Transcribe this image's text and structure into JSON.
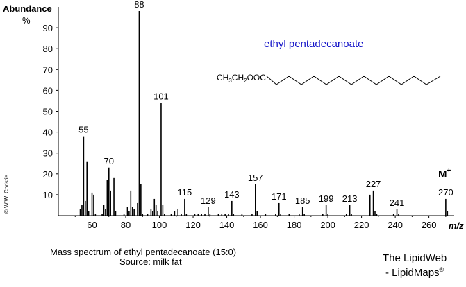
{
  "chart_data": {
    "type": "bar",
    "title": "",
    "ylabel": "Abundance",
    "ylabel_unit": "%",
    "xlabel": "m/z",
    "xlim": [
      40,
      275
    ],
    "ylim": [
      0,
      100
    ],
    "xticks": [
      60,
      80,
      100,
      120,
      140,
      160,
      180,
      200,
      220,
      240,
      260
    ],
    "yticks": [
      10,
      20,
      30,
      40,
      50,
      60,
      70,
      80,
      90
    ],
    "compound_name": "ethyl pentadecanoate",
    "formula_label": "CH3CH2OOC",
    "molecular_ion_label": "M",
    "molecular_ion_sup": "+",
    "peaks": [
      {
        "mz": 53,
        "intensity": 3
      },
      {
        "mz": 54,
        "intensity": 5
      },
      {
        "mz": 55,
        "intensity": 38,
        "label": "55"
      },
      {
        "mz": 56,
        "intensity": 7
      },
      {
        "mz": 57,
        "intensity": 26
      },
      {
        "mz": 58,
        "intensity": 2
      },
      {
        "mz": 60,
        "intensity": 11
      },
      {
        "mz": 61,
        "intensity": 10
      },
      {
        "mz": 62,
        "intensity": 1
      },
      {
        "mz": 66,
        "intensity": 1
      },
      {
        "mz": 67,
        "intensity": 5
      },
      {
        "mz": 68,
        "intensity": 3
      },
      {
        "mz": 69,
        "intensity": 17
      },
      {
        "mz": 70,
        "intensity": 23,
        "label": "70"
      },
      {
        "mz": 71,
        "intensity": 12
      },
      {
        "mz": 73,
        "intensity": 18
      },
      {
        "mz": 74,
        "intensity": 2
      },
      {
        "mz": 79,
        "intensity": 1
      },
      {
        "mz": 81,
        "intensity": 4
      },
      {
        "mz": 82,
        "intensity": 2
      },
      {
        "mz": 83,
        "intensity": 12
      },
      {
        "mz": 84,
        "intensity": 4
      },
      {
        "mz": 85,
        "intensity": 3
      },
      {
        "mz": 87,
        "intensity": 6
      },
      {
        "mz": 88,
        "intensity": 98,
        "label": "88"
      },
      {
        "mz": 89,
        "intensity": 15
      },
      {
        "mz": 90,
        "intensity": 1
      },
      {
        "mz": 93,
        "intensity": 1
      },
      {
        "mz": 95,
        "intensity": 3
      },
      {
        "mz": 96,
        "intensity": 2
      },
      {
        "mz": 97,
        "intensity": 8
      },
      {
        "mz": 98,
        "intensity": 5
      },
      {
        "mz": 99,
        "intensity": 2
      },
      {
        "mz": 101,
        "intensity": 54,
        "label": "101"
      },
      {
        "mz": 102,
        "intensity": 5
      },
      {
        "mz": 103,
        "intensity": 1
      },
      {
        "mz": 107,
        "intensity": 1
      },
      {
        "mz": 109,
        "intensity": 2
      },
      {
        "mz": 111,
        "intensity": 3
      },
      {
        "mz": 113,
        "intensity": 1
      },
      {
        "mz": 115,
        "intensity": 8,
        "label": "115"
      },
      {
        "mz": 116,
        "intensity": 1
      },
      {
        "mz": 121,
        "intensity": 1
      },
      {
        "mz": 123,
        "intensity": 1
      },
      {
        "mz": 125,
        "intensity": 1
      },
      {
        "mz": 127,
        "intensity": 1
      },
      {
        "mz": 129,
        "intensity": 4,
        "label": "129"
      },
      {
        "mz": 130,
        "intensity": 1
      },
      {
        "mz": 135,
        "intensity": 1
      },
      {
        "mz": 137,
        "intensity": 1
      },
      {
        "mz": 139,
        "intensity": 1
      },
      {
        "mz": 141,
        "intensity": 1
      },
      {
        "mz": 143,
        "intensity": 7,
        "label": "143"
      },
      {
        "mz": 144,
        "intensity": 1
      },
      {
        "mz": 149,
        "intensity": 1
      },
      {
        "mz": 155,
        "intensity": 1
      },
      {
        "mz": 157,
        "intensity": 15,
        "label": "157"
      },
      {
        "mz": 158,
        "intensity": 2
      },
      {
        "mz": 163,
        "intensity": 1
      },
      {
        "mz": 169,
        "intensity": 1
      },
      {
        "mz": 171,
        "intensity": 6,
        "label": "171"
      },
      {
        "mz": 172,
        "intensity": 1
      },
      {
        "mz": 177,
        "intensity": 1
      },
      {
        "mz": 183,
        "intensity": 1
      },
      {
        "mz": 185,
        "intensity": 4,
        "label": "185"
      },
      {
        "mz": 186,
        "intensity": 1
      },
      {
        "mz": 197,
        "intensity": 1
      },
      {
        "mz": 199,
        "intensity": 5,
        "label": "199"
      },
      {
        "mz": 200,
        "intensity": 1
      },
      {
        "mz": 211,
        "intensity": 1
      },
      {
        "mz": 213,
        "intensity": 5,
        "label": "213"
      },
      {
        "mz": 214,
        "intensity": 1
      },
      {
        "mz": 225,
        "intensity": 10
      },
      {
        "mz": 227,
        "intensity": 12,
        "label": "227"
      },
      {
        "mz": 228,
        "intensity": 2
      },
      {
        "mz": 229,
        "intensity": 1
      },
      {
        "mz": 239,
        "intensity": 1
      },
      {
        "mz": 241,
        "intensity": 3,
        "label": "241"
      },
      {
        "mz": 242,
        "intensity": 1
      },
      {
        "mz": 270,
        "intensity": 8,
        "label": "270"
      },
      {
        "mz": 271,
        "intensity": 2
      }
    ]
  },
  "copyright": "© W.W. Christie",
  "caption": "Mass spectrum of ethyl pentadecanoate (15:0)",
  "source": "Source:  milk fat",
  "credit_line1": "The LipidWeb",
  "credit_line2": "- LipidMaps",
  "credit_mark": "®"
}
